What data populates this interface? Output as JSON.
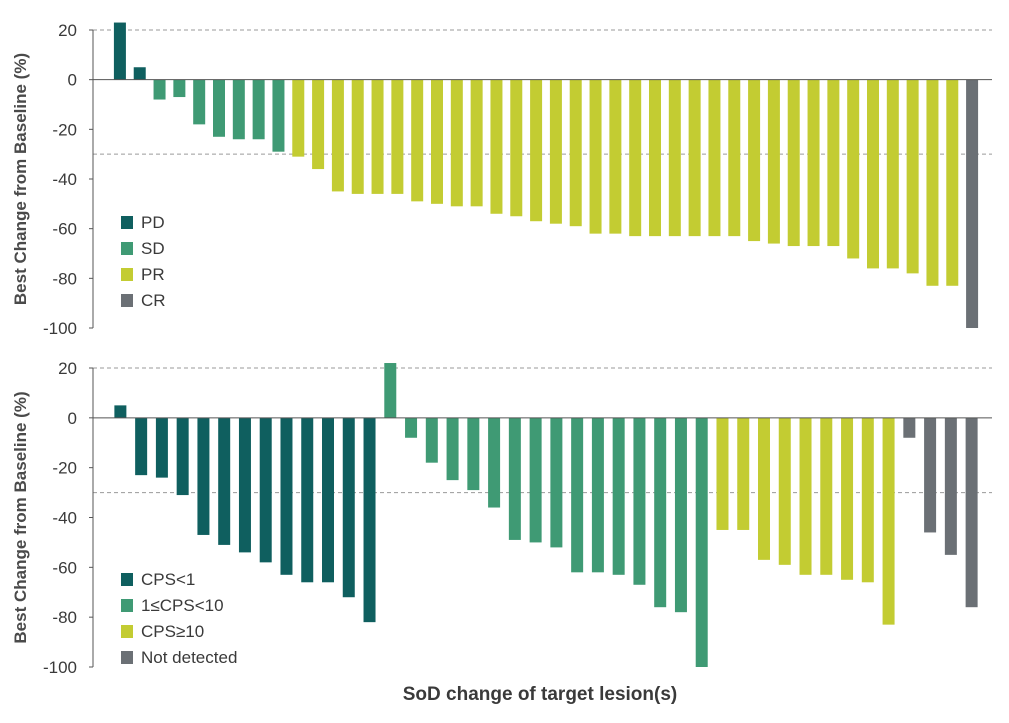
{
  "chart_data": [
    {
      "type": "bar",
      "ylabel": "Best Change from Baseline (%)",
      "ylim": [
        -100,
        20
      ],
      "yticks": [
        20,
        0,
        -20,
        -40,
        -60,
        -80,
        -100
      ],
      "reference_lines": [
        20,
        -30
      ],
      "colors": {
        "PD": "#0f5f5f",
        "SD": "#3f9a74",
        "PR": "#c3cc32",
        "CR": "#6b7075"
      },
      "legend": [
        "PD",
        "SD",
        "PR",
        "CR"
      ],
      "legend_position": "bottom-left",
      "values": [
        23,
        5,
        -8,
        -7,
        -18,
        -23,
        -24,
        -24,
        -29,
        -31,
        -36,
        -45,
        -46,
        -46,
        -46,
        -49,
        -50,
        -51,
        -51,
        -54,
        -55,
        -57,
        -58,
        -59,
        -62,
        -62,
        -63,
        -63,
        -63,
        -63,
        -63,
        -63,
        -65,
        -66,
        -67,
        -67,
        -67,
        -72,
        -76,
        -76,
        -78,
        -83,
        -83,
        -100
      ],
      "groups": [
        "PD",
        "PD",
        "SD",
        "SD",
        "SD",
        "SD",
        "SD",
        "SD",
        "SD",
        "PR",
        "PR",
        "PR",
        "PR",
        "PR",
        "PR",
        "PR",
        "PR",
        "PR",
        "PR",
        "PR",
        "PR",
        "PR",
        "PR",
        "PR",
        "PR",
        "PR",
        "PR",
        "PR",
        "PR",
        "PR",
        "PR",
        "PR",
        "PR",
        "PR",
        "PR",
        "PR",
        "PR",
        "PR",
        "PR",
        "PR",
        "PR",
        "PR",
        "PR",
        "CR"
      ]
    },
    {
      "type": "bar",
      "ylabel": "Best Change from Baseline (%)",
      "xlabel": "SoD change of target lesion(s)",
      "ylim": [
        -100,
        20
      ],
      "yticks": [
        20,
        0,
        -20,
        -40,
        -60,
        -80,
        -100
      ],
      "reference_lines": [
        20,
        -30
      ],
      "colors": {
        "CPS<1": "#0f5f5f",
        "1≤CPS<10": "#3f9a74",
        "CPS≥10": "#c3cc32",
        "Not detected": "#6b7075"
      },
      "legend": [
        "CPS<1",
        "1≤CPS<10",
        "CPS≥10",
        "Not detected"
      ],
      "legend_position": "bottom-left",
      "values": [
        5,
        -23,
        -24,
        -31,
        -47,
        -51,
        -54,
        -58,
        -63,
        -66,
        -66,
        -72,
        -82,
        22,
        -8,
        -18,
        -25,
        -29,
        -36,
        -49,
        -50,
        -52,
        -62,
        -62,
        -63,
        -67,
        -76,
        -78,
        -100,
        -45,
        -45,
        -57,
        -59,
        -63,
        -63,
        -65,
        -66,
        -83,
        -8,
        -46,
        -55,
        -76
      ],
      "groups": [
        "CPS<1",
        "CPS<1",
        "CPS<1",
        "CPS<1",
        "CPS<1",
        "CPS<1",
        "CPS<1",
        "CPS<1",
        "CPS<1",
        "CPS<1",
        "CPS<1",
        "CPS<1",
        "CPS<1",
        "1≤CPS<10",
        "1≤CPS<10",
        "1≤CPS<10",
        "1≤CPS<10",
        "1≤CPS<10",
        "1≤CPS<10",
        "1≤CPS<10",
        "1≤CPS<10",
        "1≤CPS<10",
        "1≤CPS<10",
        "1≤CPS<10",
        "1≤CPS<10",
        "1≤CPS<10",
        "1≤CPS<10",
        "1≤CPS<10",
        "1≤CPS<10",
        "CPS≥10",
        "CPS≥10",
        "CPS≥10",
        "CPS≥10",
        "CPS≥10",
        "CPS≥10",
        "CPS≥10",
        "CPS≥10",
        "CPS≥10",
        "Not detected",
        "Not detected",
        "Not detected",
        "Not detected"
      ]
    }
  ]
}
